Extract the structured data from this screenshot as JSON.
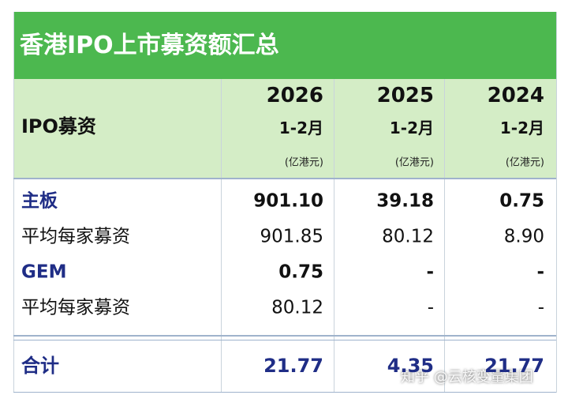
{
  "title": "香港IPO上市募资额汇总",
  "table": {
    "header": {
      "label": "IPO募资",
      "columns": [
        {
          "year": "2026",
          "period": "1-2月",
          "unit": "(亿港元)"
        },
        {
          "year": "2025",
          "period": "1-2月",
          "unit": "(亿港元)"
        },
        {
          "year": "2024",
          "period": "1-2月",
          "unit": "(亿港元)"
        }
      ]
    },
    "rows": [
      {
        "label": "主板",
        "values": [
          "901.10",
          "39.18",
          "0.75"
        ]
      },
      {
        "label": "平均每家募资",
        "values": [
          "901.85",
          "80.12",
          "8.90"
        ]
      },
      {
        "label": "GEM",
        "values": [
          "0.75",
          "-",
          "-"
        ]
      },
      {
        "label": "平均每家募资",
        "values": [
          "80.12",
          "-",
          "-"
        ]
      },
      {
        "label": "合计",
        "values": [
          "21.77",
          "4.35",
          "21.77"
        ]
      }
    ]
  },
  "watermark": "知乎 @云核变量集团"
}
